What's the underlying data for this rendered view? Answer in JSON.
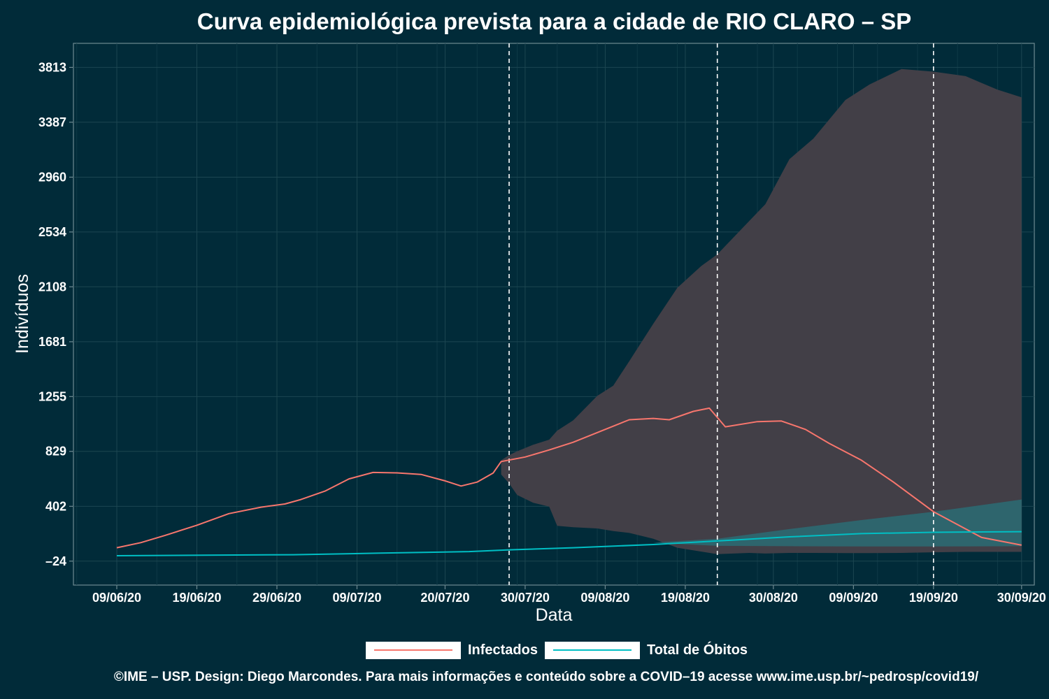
{
  "chart_data": {
    "type": "line",
    "title": "Curva epidemiológica prevista para a cidade de RIO CLARO – SP",
    "xlabel": "Data",
    "ylabel": "Indivíduos",
    "x_ticks": [
      "09/06/20",
      "19/06/20",
      "29/06/20",
      "09/07/20",
      "20/07/20",
      "30/07/20",
      "09/08/20",
      "19/08/20",
      "30/08/20",
      "09/09/20",
      "19/09/20",
      "30/09/20"
    ],
    "y_ticks": [
      "-24",
      "402",
      "829",
      "1255",
      "1681",
      "2108",
      "2534",
      "2960",
      "3387",
      "3813"
    ],
    "ylim": [
      -210,
      4000
    ],
    "xlim": [
      "2020-06-09",
      "2020-10-01"
    ],
    "vertical_lines": [
      "2020-07-28",
      "2020-08-23",
      "2020-09-19"
    ],
    "grid": true,
    "legend_position": "bottom",
    "series": [
      {
        "name": "Infectados",
        "color": "#f8766d",
        "points": [
          [
            "2020-06-09",
            80
          ],
          [
            "2020-06-12",
            120
          ],
          [
            "2020-06-15",
            175
          ],
          [
            "2020-06-19",
            255
          ],
          [
            "2020-06-23",
            345
          ],
          [
            "2020-06-27",
            395
          ],
          [
            "2020-06-30",
            420
          ],
          [
            "2020-07-02",
            455
          ],
          [
            "2020-07-05",
            520
          ],
          [
            "2020-07-08",
            615
          ],
          [
            "2020-07-11",
            665
          ],
          [
            "2020-07-14",
            662
          ],
          [
            "2020-07-17",
            650
          ],
          [
            "2020-07-20",
            600
          ],
          [
            "2020-07-22",
            560
          ],
          [
            "2020-07-24",
            590
          ],
          [
            "2020-07-26",
            660
          ],
          [
            "2020-07-27",
            750
          ],
          [
            "2020-07-30",
            785
          ],
          [
            "2020-08-02",
            840
          ],
          [
            "2020-08-05",
            900
          ],
          [
            "2020-08-09",
            1000
          ],
          [
            "2020-08-12",
            1075
          ],
          [
            "2020-08-15",
            1085
          ],
          [
            "2020-08-17",
            1075
          ],
          [
            "2020-08-20",
            1140
          ],
          [
            "2020-08-22",
            1165
          ],
          [
            "2020-08-24",
            1020
          ],
          [
            "2020-08-28",
            1060
          ],
          [
            "2020-08-31",
            1065
          ],
          [
            "2020-09-03",
            1000
          ],
          [
            "2020-09-06",
            890
          ],
          [
            "2020-09-10",
            760
          ],
          [
            "2020-09-14",
            590
          ],
          [
            "2020-09-19",
            360
          ],
          [
            "2020-09-25",
            160
          ],
          [
            "2020-09-30",
            100
          ]
        ]
      },
      {
        "name": "Total de Óbitos",
        "color": "#00bfc4",
        "points": [
          [
            "2020-06-09",
            18
          ],
          [
            "2020-06-20",
            22
          ],
          [
            "2020-07-01",
            26
          ],
          [
            "2020-07-12",
            38
          ],
          [
            "2020-07-23",
            50
          ],
          [
            "2020-07-28",
            64
          ],
          [
            "2020-08-05",
            80
          ],
          [
            "2020-08-15",
            105
          ],
          [
            "2020-08-25",
            140
          ],
          [
            "2020-09-01",
            165
          ],
          [
            "2020-09-10",
            190
          ],
          [
            "2020-09-19",
            200
          ],
          [
            "2020-09-30",
            205
          ]
        ]
      }
    ],
    "bands": [
      {
        "series": "Infectados",
        "color": "#423f47",
        "points": [
          [
            "2020-07-27",
            650,
            760
          ],
          [
            "2020-07-28",
            580,
            800
          ],
          [
            "2020-07-29",
            490,
            830
          ],
          [
            "2020-07-31",
            430,
            880
          ],
          [
            "2020-08-02",
            400,
            920
          ],
          [
            "2020-08-03",
            250,
            990
          ],
          [
            "2020-08-05",
            240,
            1070
          ],
          [
            "2020-08-08",
            230,
            1260
          ],
          [
            "2020-08-10",
            210,
            1340
          ],
          [
            "2020-08-12",
            195,
            1530
          ],
          [
            "2020-08-15",
            150,
            1820
          ],
          [
            "2020-08-18",
            80,
            2100
          ],
          [
            "2020-08-21",
            50,
            2270
          ],
          [
            "2020-08-23",
            30,
            2360
          ],
          [
            "2020-08-27",
            40,
            2620
          ],
          [
            "2020-08-29",
            35,
            2750
          ],
          [
            "2020-09-01",
            40,
            3100
          ],
          [
            "2020-09-04",
            40,
            3260
          ],
          [
            "2020-09-08",
            38,
            3560
          ],
          [
            "2020-09-11",
            38,
            3680
          ],
          [
            "2020-09-15",
            40,
            3800
          ],
          [
            "2020-09-19",
            45,
            3780
          ],
          [
            "2020-09-23",
            48,
            3745
          ],
          [
            "2020-09-27",
            48,
            3640
          ],
          [
            "2020-09-30",
            48,
            3580
          ]
        ]
      },
      {
        "series": "Total de Óbitos",
        "color": "#2d6770",
        "points": [
          [
            "2020-08-15",
            120,
            120
          ],
          [
            "2020-08-23",
            95,
            150
          ],
          [
            "2020-09-01",
            92,
            225
          ],
          [
            "2020-09-10",
            90,
            295
          ],
          [
            "2020-09-19",
            90,
            360
          ],
          [
            "2020-09-30",
            92,
            455
          ]
        ]
      }
    ]
  },
  "legend": {
    "items": [
      {
        "label": "Infectados",
        "color": "#f8766d"
      },
      {
        "label": "Total de Óbitos",
        "color": "#00bfc4"
      }
    ]
  },
  "footer": {
    "text": "©IME – USP. Design: Diego Marcondes. Para mais informações e conteúdo sobre a COVID–19 acesse www.ime.usp.br/~pedrosp/covid19/"
  },
  "colors": {
    "background": "#012b39",
    "text": "#ffffff",
    "grid": "#1c4651",
    "axis": "#6f8a92"
  }
}
